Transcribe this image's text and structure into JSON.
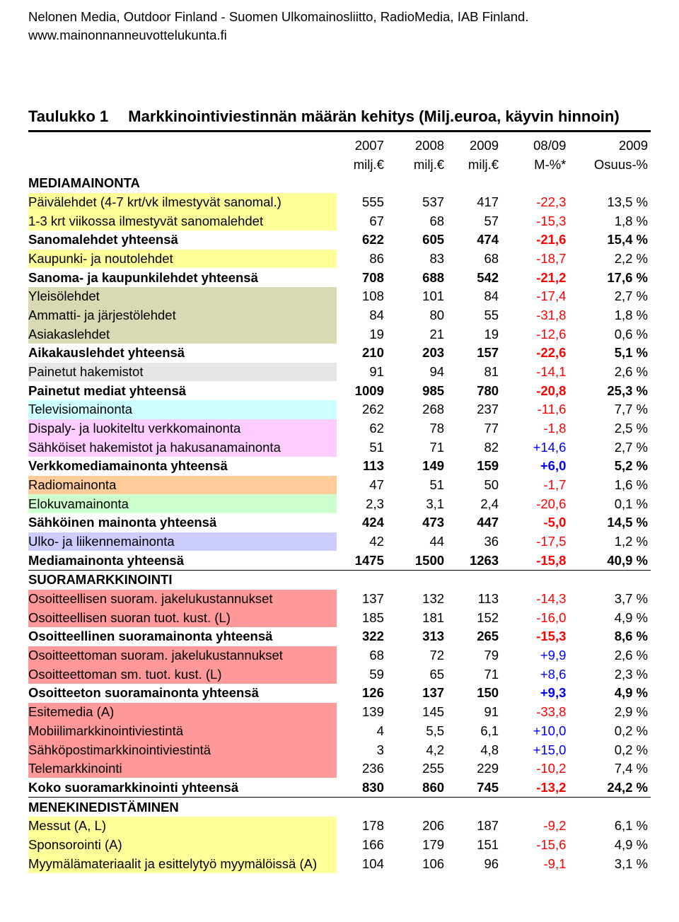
{
  "header": {
    "source": "Nelonen Media, Outdoor Finland - Suomen Ulkomainosliitto, RadioMedia, IAB Finland.",
    "url": "www.mainonnanneuvottelukunta.fi"
  },
  "title": {
    "prefix": "Taulukko 1",
    "main": "Markkinointiviestinnän määrän kehitys (Milj.euroa, käyvin hinnoin)"
  },
  "columns": {
    "top": [
      "",
      "2007",
      "2008",
      "2009",
      "08/09",
      "2009"
    ],
    "sub": [
      "",
      "milj.€",
      "milj.€",
      "milj.€",
      "M-%*",
      "Osuus-%"
    ]
  },
  "rows": [
    {
      "label": "MEDIAMAINONTA",
      "v": [
        "",
        "",
        "",
        "",
        ""
      ],
      "section": true
    },
    {
      "label": "Päivälehdet (4-7 krt/vk ilmestyvät sanomal.)",
      "v": [
        "555",
        "537",
        "417",
        "-22,3",
        "13,5 %"
      ],
      "bg": "bg-y"
    },
    {
      "label": "1-3 krt viikossa ilmestyvät sanomalehdet",
      "v": [
        "67",
        "68",
        "57",
        "-15,3",
        "1,8 %"
      ],
      "bg": "bg-y"
    },
    {
      "label": "Sanomalehdet yhteensä",
      "v": [
        "622",
        "605",
        "474",
        "-21,6",
        "15,4 %"
      ],
      "bold": true
    },
    {
      "label": "Kaupunki- ja noutolehdet",
      "v": [
        "86",
        "83",
        "68",
        "-18,7",
        "2,2 %"
      ],
      "bg": "bg-y"
    },
    {
      "label": "Sanoma- ja kaupunkilehdet yhteensä",
      "v": [
        "708",
        "688",
        "542",
        "-21,2",
        "17,6 %"
      ],
      "bold": true
    },
    {
      "label": "Yleisölehdet",
      "v": [
        "108",
        "101",
        "84",
        "-17,4",
        "2,7 %"
      ],
      "bg": "bg-t"
    },
    {
      "label": "Ammatti- ja järjestölehdet",
      "v": [
        "84",
        "80",
        "55",
        "-31,8",
        "1,8 %"
      ],
      "bg": "bg-t"
    },
    {
      "label": "Asiakaslehdet",
      "v": [
        "19",
        "21",
        "19",
        "-12,6",
        "0,6 %"
      ],
      "bg": "bg-t"
    },
    {
      "label": "Aikakauslehdet yhteensä",
      "v": [
        "210",
        "203",
        "157",
        "-22,6",
        "5,1 %"
      ],
      "bold": true
    },
    {
      "label": "Painetut hakemistot",
      "v": [
        "91",
        "94",
        "81",
        "-14,1",
        "2,6 %"
      ],
      "bg": "bg-g"
    },
    {
      "label": "Painetut mediat yhteensä",
      "v": [
        "1009",
        "985",
        "780",
        "-20,8",
        "25,3 %"
      ],
      "bold": true
    },
    {
      "label": "Televisiomainonta",
      "v": [
        "262",
        "268",
        "237",
        "-11,6",
        "7,7 %"
      ],
      "bg": "bg-b"
    },
    {
      "label": "Dispaly- ja luokiteltu verkkomainonta",
      "v": [
        "62",
        "78",
        "77",
        "-1,8",
        "2,5 %"
      ],
      "bg": "bg-p"
    },
    {
      "label": "Sähköiset hakemistot ja hakusanamainonta",
      "v": [
        "51",
        "71",
        "82",
        "+14,6",
        "2,7 %"
      ],
      "bg": "bg-p"
    },
    {
      "label": "Verkkomediamainonta yhteensä",
      "v": [
        "113",
        "149",
        "159",
        "+6,0",
        "5,2 %"
      ],
      "bold": true
    },
    {
      "label": "Radiomainonta",
      "v": [
        "47",
        "51",
        "50",
        "-1,7",
        "1,6 %"
      ],
      "bg": "bg-o"
    },
    {
      "label": "Elokuvamainonta",
      "v": [
        "2,3",
        "3,1",
        "2,4",
        "-20,6",
        "0,1 %"
      ],
      "bg": "bg-lg"
    },
    {
      "label": "Sähköinen mainonta yhteensä",
      "v": [
        "424",
        "473",
        "447",
        "-5,0",
        "14,5 %"
      ],
      "bold": true
    },
    {
      "label": "Ulko- ja liikennemainonta",
      "v": [
        "42",
        "44",
        "36",
        "-17,5",
        "1,2 %"
      ],
      "bg": "bg-lv"
    },
    {
      "label": "Mediamainonta yhteensä",
      "v": [
        "1475",
        "1500",
        "1263",
        "-15,8",
        "40,9 %"
      ],
      "bold": true,
      "underline": true
    },
    {
      "label": "SUORAMARKKINOINTI",
      "v": [
        "",
        "",
        "",
        "",
        ""
      ],
      "section": true
    },
    {
      "label": "Osoitteellisen suoram. jakelukustannukset",
      "v": [
        "137",
        "132",
        "113",
        "-14,3",
        "3,7 %"
      ],
      "bg": "bg-rd"
    },
    {
      "label": "Osoitteellisen suoran tuot. kust. (L)",
      "v": [
        "185",
        "181",
        "152",
        "-16,0",
        "4,9 %"
      ],
      "bg": "bg-rd"
    },
    {
      "label": "Osoitteellinen suoramainonta yhteensä",
      "v": [
        "322",
        "313",
        "265",
        "-15,3",
        "8,6 %"
      ],
      "bold": true
    },
    {
      "label": "Osoitteettoman suoram. jakelukustannukset",
      "v": [
        "68",
        "72",
        "79",
        "+9,9",
        "2,6 %"
      ],
      "bg": "bg-rd"
    },
    {
      "label": "Osoitteettoman sm. tuot. kust. (L)",
      "v": [
        "59",
        "65",
        "71",
        "+8,6",
        "2,3 %"
      ],
      "bg": "bg-rd"
    },
    {
      "label": "Osoitteeton suoramainonta yhteensä",
      "v": [
        "126",
        "137",
        "150",
        "+9,3",
        "4,9 %"
      ],
      "bold": true
    },
    {
      "label": "Esitemedia (A)",
      "v": [
        "139",
        "145",
        "91",
        "-33,8",
        "2,9 %"
      ],
      "bg": "bg-rd"
    },
    {
      "label": "Mobiilimarkkinointiviestintä",
      "v": [
        "4",
        "5,5",
        "6,1",
        "+10,0",
        "0,2 %"
      ],
      "bg": "bg-rd"
    },
    {
      "label": "Sähköpostimarkkinointiviestintä",
      "v": [
        "3",
        "4,2",
        "4,8",
        "+15,0",
        "0,2 %"
      ],
      "bg": "bg-rd"
    },
    {
      "label": "Telemarkkinointi",
      "v": [
        "236",
        "255",
        "229",
        "-10,2",
        "7,4 %"
      ],
      "bg": "bg-rd"
    },
    {
      "label": "Koko suoramarkkinointi yhteensä",
      "v": [
        "830",
        "860",
        "745",
        "-13,2",
        "24,2 %"
      ],
      "bold": true,
      "underline": true
    },
    {
      "label": "MENEKINEDISTÄMINEN",
      "v": [
        "",
        "",
        "",
        "",
        ""
      ],
      "section": true
    },
    {
      "label": "Messut (A, L)",
      "v": [
        "178",
        "206",
        "187",
        "-9,2",
        "6,1 %"
      ],
      "bg": "bg-y"
    },
    {
      "label": "Sponsorointi (A)",
      "v": [
        "166",
        "179",
        "151",
        "-15,6",
        "4,9 %"
      ],
      "bg": "bg-y"
    },
    {
      "label": "Myymälämateriaalit ja esittelytyö myymälöissä (A)",
      "v": [
        "104",
        "106",
        "96",
        "-9,1",
        "3,1 %"
      ],
      "bg": "bg-y"
    }
  ]
}
